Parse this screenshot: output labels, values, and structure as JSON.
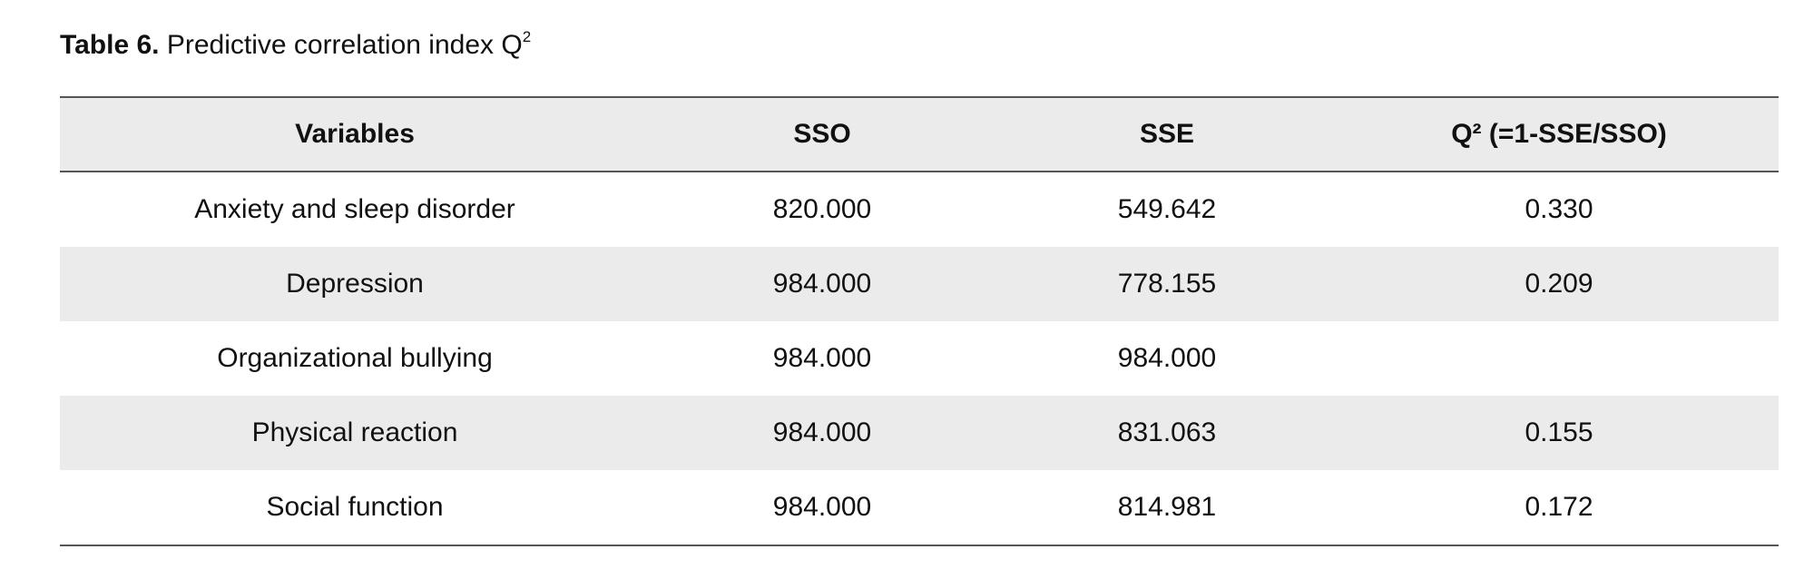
{
  "caption": {
    "label": "Table 6.",
    "text": "Predictive correlation index Q",
    "superscript": "2"
  },
  "table": {
    "headers": [
      "Variables",
      "SSO",
      "SSE",
      "Q² (=1-SSE/SSO)"
    ],
    "rows": [
      [
        "Anxiety and sleep disorder",
        "820.000",
        "549.642",
        "0.330"
      ],
      [
        "Depression",
        "984.000",
        "778.155",
        "0.209"
      ],
      [
        "Organizational bullying",
        "984.000",
        "984.000",
        ""
      ],
      [
        "Physical reaction",
        "984.000",
        "831.063",
        "0.155"
      ],
      [
        "Social function",
        "984.000",
        "814.981",
        "0.172"
      ]
    ]
  },
  "colors": {
    "header_background": "#ebebeb",
    "stripe_background": "#ebebeb",
    "rule_color": "#555555"
  }
}
